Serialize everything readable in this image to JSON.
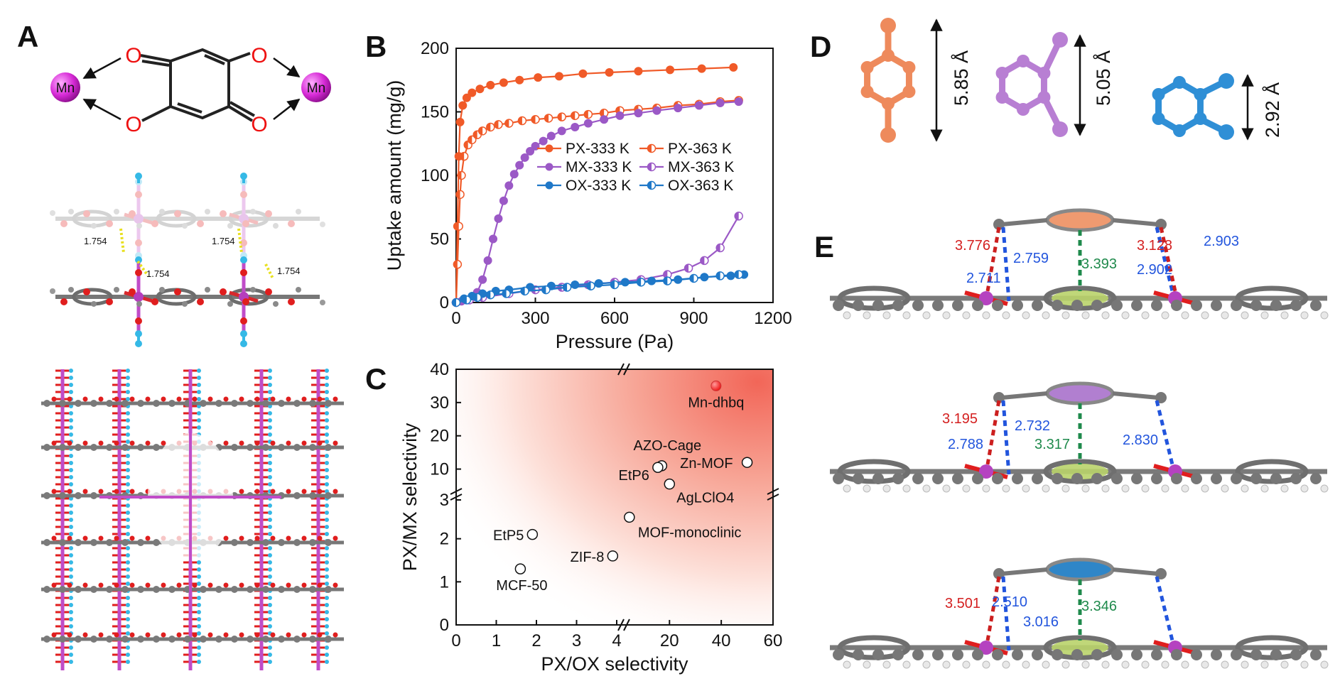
{
  "panels": {
    "A": {
      "letter": "A",
      "metal_label": "Mn",
      "oxygen_label": "O",
      "hbond_labels": [
        "1.754",
        "1.754",
        "1.754",
        "1.754"
      ]
    },
    "B": {
      "letter": "B"
    },
    "C": {
      "letter": "C"
    },
    "D": {
      "letter": "D",
      "dimensions": [
        "5.85 Å",
        "5.05 Å",
        "2.92 Å"
      ],
      "colors": [
        "#ee8a5c",
        "#b87fd3",
        "#2f8fd6"
      ]
    },
    "E": {
      "letter": "E",
      "rows": [
        {
          "ring_color": "#ef9a70",
          "red": "3.776",
          "blue": [
            "2.759",
            "2.711",
            "2.902",
            "2.903"
          ],
          "red2": "3.128",
          "green": "3.393"
        },
        {
          "ring_color": "#b17fd0",
          "red": "3.195",
          "blue": [
            "2.788",
            "2.732",
            "2.830"
          ],
          "green": "3.317"
        },
        {
          "ring_color": "#2f86c8",
          "red": "3.501",
          "blue": [
            "2.510",
            "3.016"
          ],
          "green": "3.346"
        }
      ]
    }
  },
  "chart_data": [
    {
      "panel": "B",
      "type": "line",
      "xlabel": "Pressure (Pa)",
      "ylabel": "Uptake amount (mg/g)",
      "xlim": [
        0,
        1200
      ],
      "ylim": [
        0,
        200
      ],
      "xticks": [
        "0",
        "300",
        "600",
        "900",
        "1200"
      ],
      "yticks": [
        "0",
        "50",
        "100",
        "150",
        "200"
      ],
      "legend_position": "right-middle",
      "series": [
        {
          "name": "PX-333 K",
          "color": "#f05a28",
          "marker": "filled",
          "x": [
            0,
            5,
            10,
            15,
            25,
            40,
            60,
            90,
            130,
            180,
            240,
            310,
            390,
            480,
            580,
            690,
            810,
            930,
            1050
          ],
          "y": [
            0,
            60,
            115,
            142,
            155,
            161,
            165,
            168,
            171,
            173,
            175,
            177,
            178,
            180,
            181,
            182,
            183,
            184,
            185
          ]
        },
        {
          "name": "PX-363 K",
          "color": "#f05a28",
          "marker": "half",
          "x": [
            0,
            5,
            10,
            15,
            20,
            30,
            45,
            60,
            80,
            100,
            130,
            160,
            200,
            250,
            300,
            350,
            400,
            450,
            500,
            560,
            620,
            690,
            760,
            840,
            920,
            1000,
            1070
          ],
          "y": [
            0,
            30,
            60,
            85,
            100,
            115,
            124,
            128,
            132,
            135,
            138,
            140,
            141,
            143,
            144,
            145,
            146,
            147,
            148,
            149,
            151,
            152,
            153,
            155,
            156,
            158,
            159
          ]
        },
        {
          "name": "MX-333 K",
          "color": "#9b59c6",
          "marker": "filled",
          "x": [
            0,
            20,
            40,
            60,
            80,
            100,
            120,
            140,
            160,
            180,
            200,
            220,
            240,
            260,
            280,
            300,
            330,
            360,
            400,
            450,
            500,
            560,
            620,
            690,
            760,
            840,
            920,
            1000,
            1070
          ],
          "y": [
            0,
            1,
            2,
            4,
            8,
            18,
            33,
            50,
            66,
            80,
            92,
            101,
            108,
            114,
            119,
            123,
            127,
            131,
            135,
            138,
            141,
            144,
            147,
            149,
            151,
            153,
            155,
            157,
            158
          ]
        },
        {
          "name": "MX-363 K",
          "color": "#9b59c6",
          "marker": "half",
          "x": [
            0,
            50,
            100,
            200,
            300,
            400,
            500,
            600,
            700,
            800,
            880,
            940,
            1000,
            1070
          ],
          "y": [
            0,
            2,
            4,
            7,
            10,
            12,
            14,
            16,
            18,
            22,
            27,
            33,
            43,
            68
          ]
        },
        {
          "name": "OX-333 K",
          "color": "#1f78c8",
          "marker": "filled",
          "x": [
            0,
            30,
            60,
            100,
            150,
            200,
            280,
            360,
            450,
            540,
            640,
            740,
            840,
            940,
            1040,
            1090
          ],
          "y": [
            0,
            3,
            5,
            7,
            9,
            10,
            12,
            13,
            14,
            15,
            16,
            17,
            18,
            20,
            21,
            22
          ]
        },
        {
          "name": "OX-363 K",
          "color": "#1f78c8",
          "marker": "half",
          "x": [
            0,
            40,
            80,
            130,
            190,
            260,
            340,
            420,
            510,
            600,
            700,
            800,
            900,
            1000,
            1070
          ],
          "y": [
            0,
            2,
            4,
            6,
            7,
            9,
            10,
            12,
            13,
            14,
            16,
            17,
            19,
            21,
            22
          ]
        }
      ]
    },
    {
      "panel": "C",
      "type": "scatter",
      "xlabel": "PX/OX selectivity",
      "ylabel": "PX/MX selectivity",
      "xlim": [
        0,
        60
      ],
      "ylim": [
        0,
        40
      ],
      "x_axis_break": true,
      "y_axis_break": true,
      "xticks": [
        "0",
        "1",
        "2",
        "3",
        "4",
        "20",
        "40",
        "60"
      ],
      "yticks": [
        "0",
        "1",
        "2",
        "3",
        "10",
        "20",
        "30",
        "40"
      ],
      "points": [
        {
          "label": "Mn-dhbq",
          "x": 38,
          "y": 35,
          "highlight": true
        },
        {
          "label": "Zn-MOF",
          "x": 50,
          "y": 12
        },
        {
          "label": "AZO-Cage",
          "x": 17,
          "y": 11
        },
        {
          "label": "EtP6",
          "x": 15.5,
          "y": 10.5
        },
        {
          "label": "AgLClO4",
          "x": 20,
          "y": 5.5
        },
        {
          "label": "MOF-monoclinic",
          "x": 4.5,
          "y": 2.5
        },
        {
          "label": "EtP5",
          "x": 1.9,
          "y": 2.1
        },
        {
          "label": "ZIF-8",
          "x": 3.9,
          "y": 1.6
        },
        {
          "label": "MCF-50",
          "x": 1.6,
          "y": 1.3
        }
      ]
    }
  ]
}
